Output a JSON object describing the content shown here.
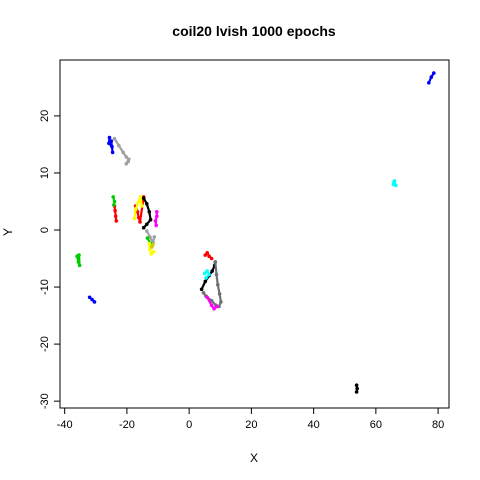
{
  "chart_data": {
    "type": "scatter",
    "title": "coil20 lvish 1000 epochs",
    "xlabel": "X",
    "ylabel": "Y",
    "xlim": [
      -41.5,
      83.5
    ],
    "ylim": [
      -31.2,
      29.8
    ],
    "xticks": [
      -40,
      -20,
      0,
      20,
      40,
      60,
      80
    ],
    "yticks": [
      -30,
      -20,
      -10,
      0,
      10,
      20
    ],
    "xtick_labels": [
      "-40",
      "-20",
      "0",
      "20",
      "40",
      "60",
      "80"
    ],
    "ytick_labels": [
      "-30",
      "-20",
      "-10",
      "0",
      "10",
      "20"
    ],
    "grid": false,
    "legend": "none",
    "series": [
      {
        "color": "#0000ff",
        "shape": "line",
        "points": [
          [
            -25.6,
            16.2
          ],
          [
            -25.8,
            15.2
          ],
          [
            -24.8,
            14.6
          ],
          [
            -24.6,
            13.6
          ],
          [
            -25.0,
            15.6
          ]
        ]
      },
      {
        "color": "#0000ff",
        "shape": "line",
        "points": [
          [
            77.0,
            25.8
          ],
          [
            77.8,
            26.8
          ],
          [
            78.6,
            27.5
          ]
        ]
      },
      {
        "color": "#0000ff",
        "shape": "line",
        "points": [
          [
            -32.0,
            -11.8
          ],
          [
            -31.2,
            -12.2
          ],
          [
            -30.4,
            -12.6
          ]
        ]
      },
      {
        "color": "#a0a0a0",
        "shape": "line",
        "points": [
          [
            -24.0,
            16.0
          ],
          [
            -22.6,
            14.8
          ],
          [
            -21.2,
            13.6
          ],
          [
            -20.2,
            12.8
          ],
          [
            -19.4,
            12.4
          ],
          [
            -20.2,
            11.6
          ],
          [
            -19.6,
            12.0
          ]
        ]
      },
      {
        "color": "#a0a0a0",
        "shape": "line",
        "points": [
          [
            -13.6,
            -0.2
          ],
          [
            -12.6,
            -1.2
          ],
          [
            -11.6,
            -2.2
          ],
          [
            -11.2,
            -1.2
          ]
        ]
      },
      {
        "color": "#ff0000",
        "shape": "line",
        "points": [
          [
            -24.0,
            4.2
          ],
          [
            -23.8,
            3.4
          ],
          [
            -23.6,
            2.4
          ],
          [
            -23.4,
            1.6
          ]
        ]
      },
      {
        "color": "#ff0000",
        "shape": "line",
        "points": [
          [
            -17.2,
            4.2
          ],
          [
            -16.6,
            3.2
          ],
          [
            -16.2,
            2.2
          ],
          [
            -15.8,
            1.4
          ],
          [
            -14.6,
            5.8
          ]
        ]
      },
      {
        "color": "#ff0000",
        "shape": "line",
        "points": [
          [
            5.2,
            -4.4
          ],
          [
            5.8,
            -4.0
          ],
          [
            6.4,
            -4.6
          ],
          [
            7.2,
            -5.0
          ]
        ]
      },
      {
        "color": "#00cd00",
        "shape": "line",
        "points": [
          [
            -24.4,
            5.8
          ],
          [
            -24.0,
            5.0
          ],
          [
            -24.2,
            4.4
          ]
        ]
      },
      {
        "color": "#00cd00",
        "shape": "line",
        "points": [
          [
            -36.0,
            -4.6
          ],
          [
            -35.6,
            -5.6
          ],
          [
            -35.2,
            -6.2
          ],
          [
            -35.4,
            -4.4
          ]
        ]
      },
      {
        "color": "#00cd00",
        "shape": "line",
        "points": [
          [
            -13.4,
            -1.4
          ],
          [
            -12.4,
            -2.4
          ]
        ]
      },
      {
        "color": "#ffff00",
        "shape": "line",
        "points": [
          [
            -17.6,
            2.0
          ],
          [
            -17.2,
            3.6
          ],
          [
            -16.4,
            4.8
          ],
          [
            -15.6,
            5.8
          ],
          [
            -15.2,
            4.2
          ]
        ]
      },
      {
        "color": "#ffff00",
        "shape": "line",
        "points": [
          [
            -12.8,
            -2.4
          ],
          [
            -12.6,
            -3.4
          ],
          [
            -12.2,
            -4.2
          ],
          [
            -11.4,
            -3.8
          ]
        ]
      },
      {
        "color": "#000000",
        "shape": "line",
        "points": [
          [
            -14.6,
            5.6
          ],
          [
            -13.6,
            4.6
          ],
          [
            -12.8,
            3.2
          ],
          [
            -12.4,
            1.8
          ],
          [
            -13.6,
            1.0
          ],
          [
            -14.6,
            0.4
          ]
        ]
      },
      {
        "color": "#000000",
        "shape": "line",
        "points": [
          [
            4.0,
            -10.4
          ],
          [
            5.2,
            -9.0
          ],
          [
            6.4,
            -8.0
          ],
          [
            7.4,
            -7.2
          ],
          [
            8.2,
            -6.2
          ],
          [
            8.4,
            -5.6
          ]
        ]
      },
      {
        "color": "#000000",
        "shape": "line",
        "points": [
          [
            53.8,
            -27.2
          ],
          [
            54.0,
            -27.8
          ],
          [
            53.8,
            -28.4
          ]
        ]
      },
      {
        "color": "#707070",
        "shape": "line",
        "points": [
          [
            8.4,
            -5.6
          ],
          [
            8.8,
            -7.8
          ],
          [
            9.2,
            -9.6
          ],
          [
            9.8,
            -11.2
          ],
          [
            10.2,
            -12.6
          ],
          [
            9.6,
            -13.4
          ],
          [
            8.6,
            -13.2
          ],
          [
            7.2,
            -12.4
          ],
          [
            5.4,
            -11.6
          ],
          [
            4.6,
            -11.0
          ]
        ]
      },
      {
        "color": "#ff00ff",
        "shape": "line",
        "points": [
          [
            -10.4,
            3.2
          ],
          [
            -10.4,
            2.4
          ],
          [
            -10.8,
            1.6
          ],
          [
            -10.6,
            0.8
          ]
        ]
      },
      {
        "color": "#ff00ff",
        "shape": "line",
        "points": [
          [
            5.8,
            -11.8
          ],
          [
            7.2,
            -13.2
          ],
          [
            8.0,
            -13.8
          ],
          [
            9.0,
            -13.4
          ]
        ]
      },
      {
        "color": "#00ffff",
        "shape": "line",
        "points": [
          [
            5.0,
            -7.6
          ],
          [
            5.8,
            -7.2
          ],
          [
            6.4,
            -7.8
          ],
          [
            5.4,
            -8.4
          ]
        ]
      },
      {
        "color": "#00ffff",
        "shape": "line",
        "points": [
          [
            65.6,
            8.0
          ],
          [
            66.0,
            8.6
          ],
          [
            66.4,
            7.8
          ],
          [
            65.8,
            8.4
          ]
        ]
      },
      {
        "color": "#cdcd00",
        "shape": "line",
        "points": [
          [
            -12.0,
            -3.0
          ],
          [
            -11.6,
            -2.6
          ]
        ]
      }
    ]
  }
}
